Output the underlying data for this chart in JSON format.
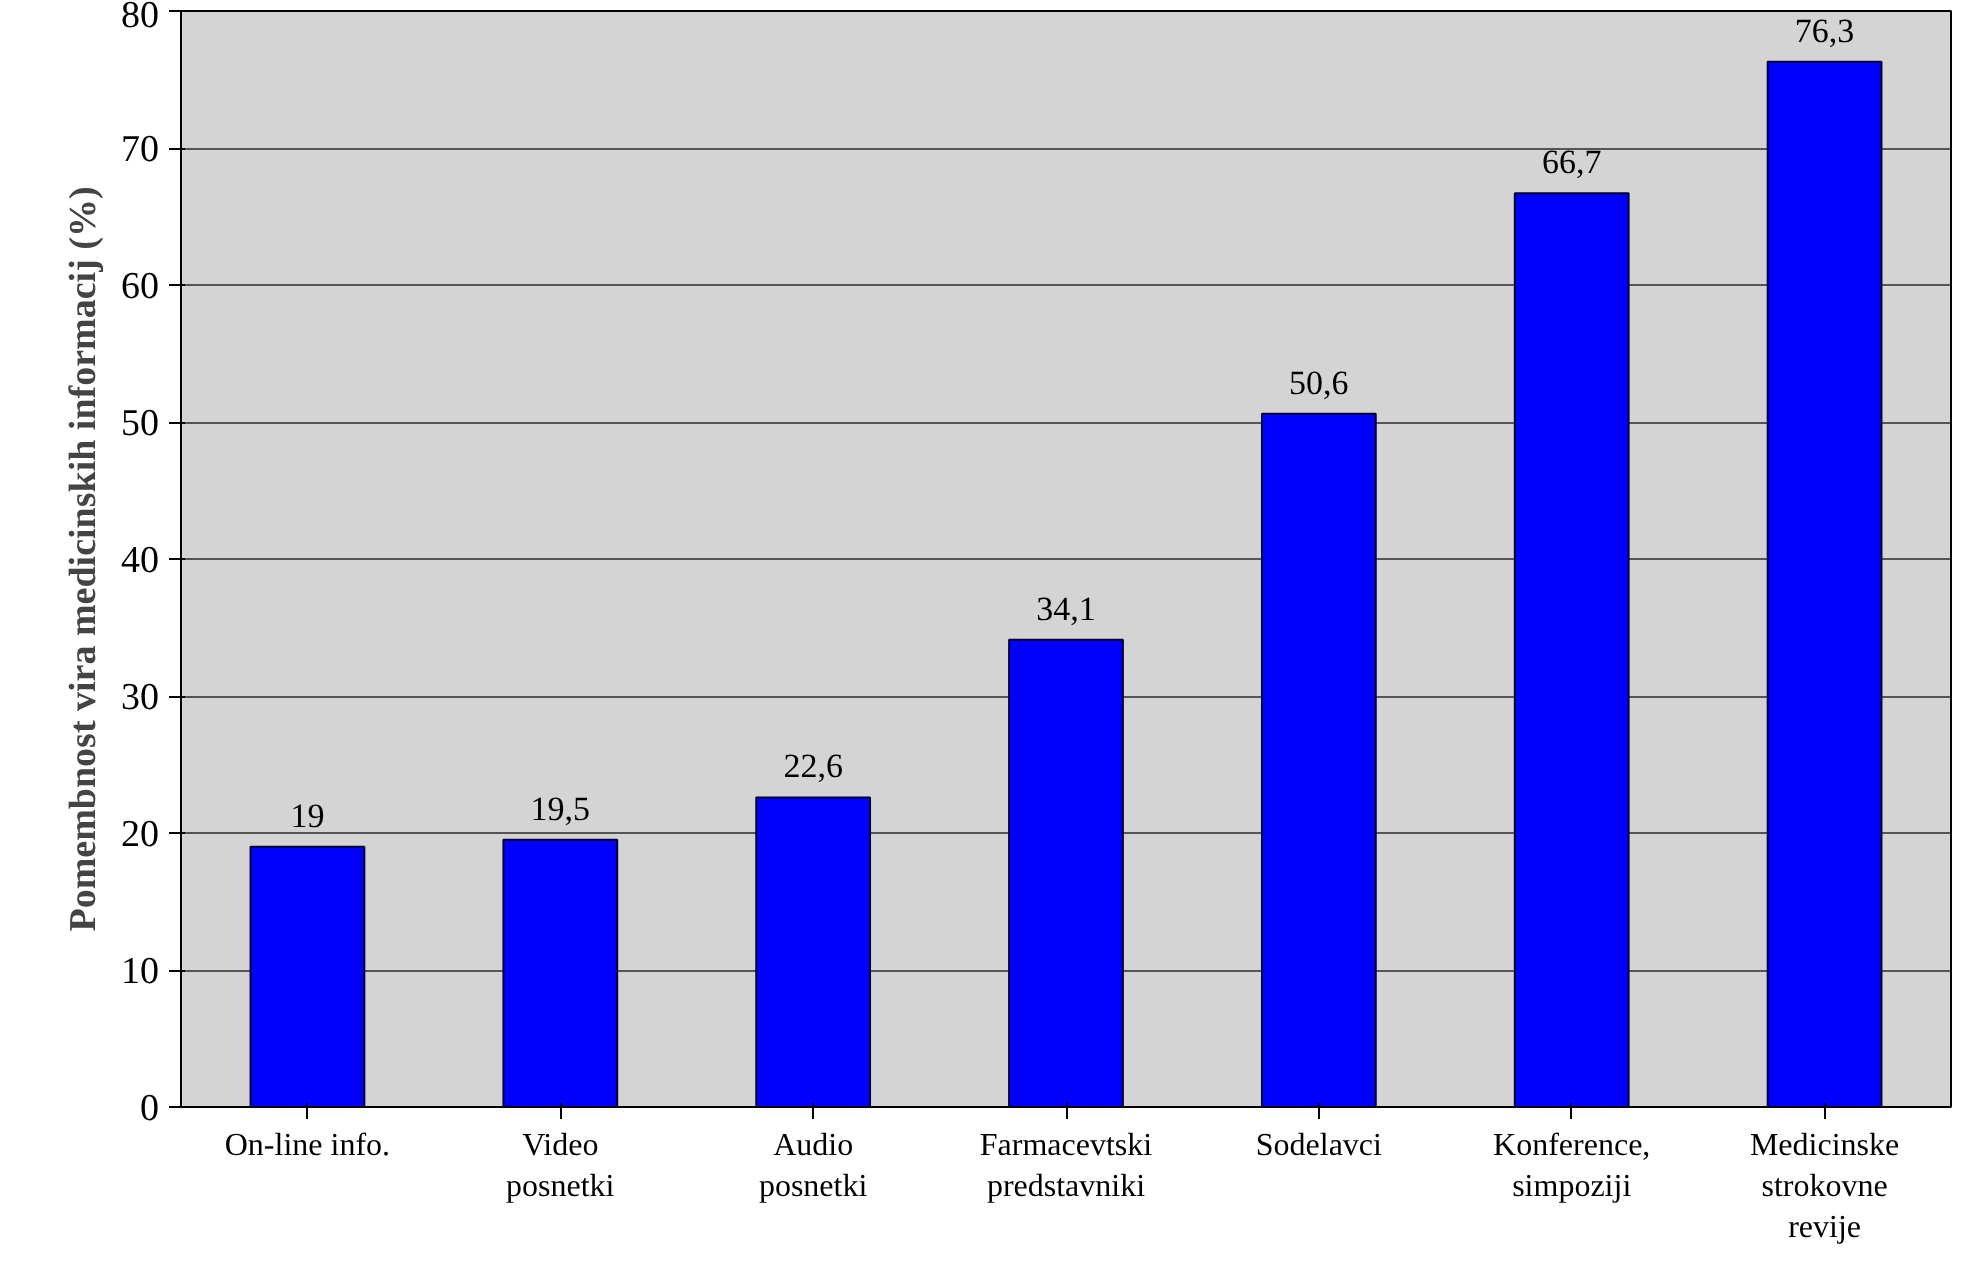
{
  "chart_data": {
    "type": "bar",
    "ylabel": "Pomembnost vira medicinskih informacij (%)",
    "categories": [
      "On-line info.",
      "Video\nposnetki",
      "Audio\nposnetki",
      "Farmacevtski\npredstavniki",
      "Sodelavci",
      "Konference,\nsimpoziji",
      "Medicinske\nstrokovne\nrevije"
    ],
    "values": [
      19,
      19.5,
      22.6,
      34.1,
      50.6,
      66.7,
      76.3
    ],
    "value_labels": [
      "19",
      "19,5",
      "22,6",
      "34,1",
      "50,6",
      "66,7",
      "76,3"
    ],
    "color": "#0000ff",
    "ylim": [
      0,
      80
    ],
    "yticks": [
      0,
      10,
      20,
      30,
      40,
      50,
      60,
      70,
      80
    ],
    "grid": "y"
  }
}
